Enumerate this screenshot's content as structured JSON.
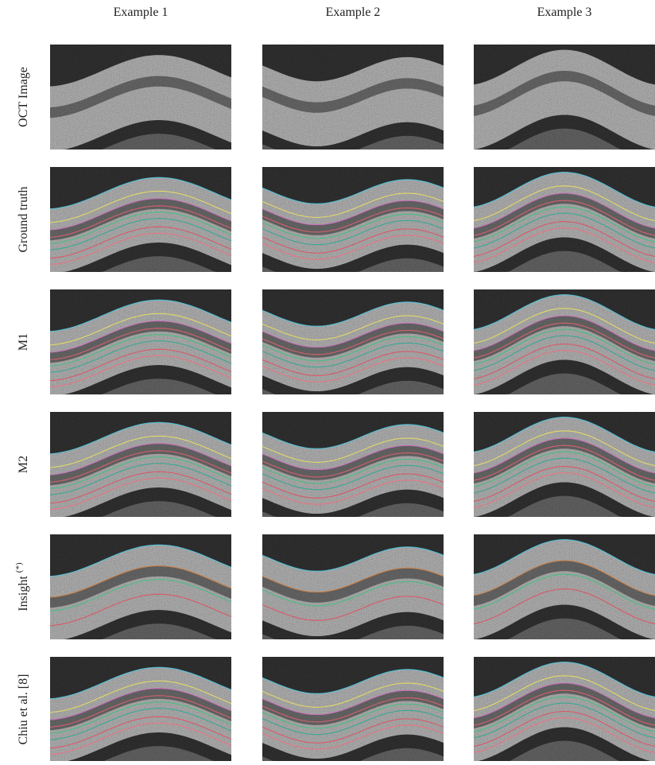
{
  "figure": {
    "columns": [
      "Example 1",
      "Example 2",
      "Example 3"
    ],
    "rows": [
      {
        "label": "OCT Image"
      },
      {
        "label": "Ground truth"
      },
      {
        "label": "M1"
      },
      {
        "label": "M2"
      },
      {
        "label": "Insight",
        "superscript": "(*)"
      },
      {
        "label": "Chiu et al. [8]"
      }
    ]
  }
}
